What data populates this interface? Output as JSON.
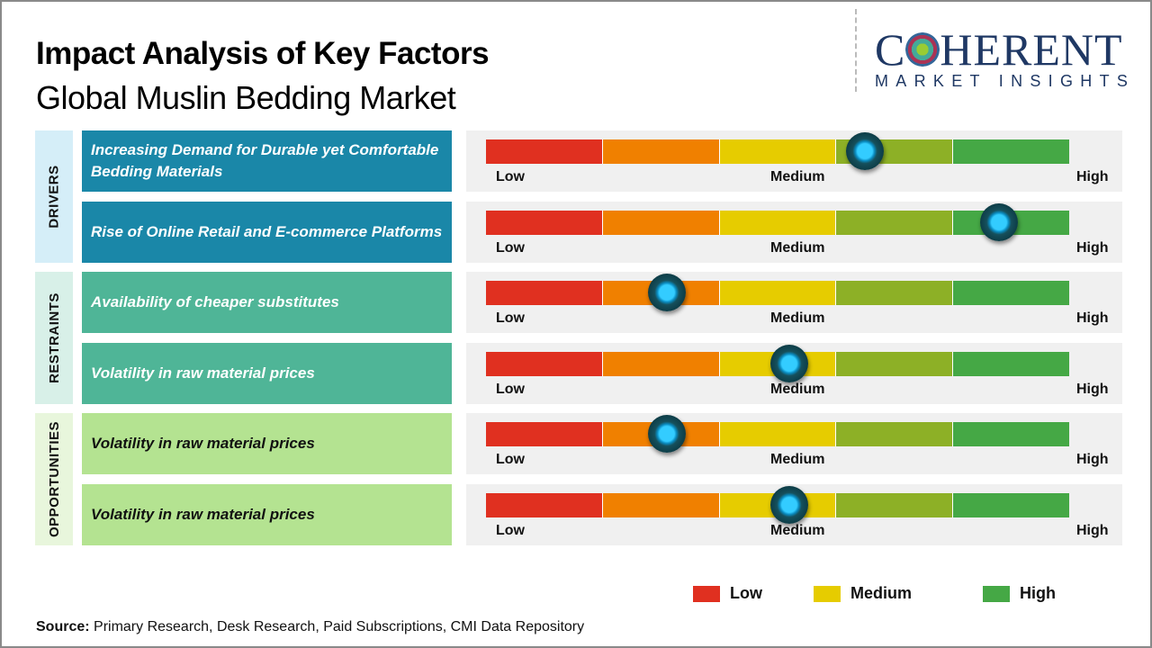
{
  "title": "Impact Analysis of Key Factors",
  "subtitle": "Global Muslin Bedding Market",
  "logo": {
    "line1": "COHERENT",
    "line2": "MARKET INSIGHTS"
  },
  "colors": {
    "low": "#e03020",
    "low_medium": "#f08000",
    "medium": "#e6cc00",
    "medium_high": "#8db026",
    "high": "#45a845",
    "drivers": "#1a87a8",
    "restraints": "#4fb597",
    "opportunities": "#b4e391"
  },
  "scale_labels": {
    "low": "Low",
    "medium": "Medium",
    "high": "High"
  },
  "categories": [
    {
      "name": "DRIVERS",
      "factors": [
        {
          "text": "Increasing Demand for Durable yet Comfortable Bedding Materials",
          "impact_fraction": 0.65
        },
        {
          "text": "Rise of Online Retail and E-commerce Platforms",
          "impact_fraction": 0.88
        }
      ]
    },
    {
      "name": "RESTRAINTS",
      "factors": [
        {
          "text": "Availability of cheaper substitutes",
          "impact_fraction": 0.31
        },
        {
          "text": "Volatility  in raw material  prices",
          "impact_fraction": 0.52
        }
      ]
    },
    {
      "name": "OPPORTUNITIES",
      "factors": [
        {
          "text": "Volatility  in raw material  prices",
          "impact_fraction": 0.31
        },
        {
          "text": "Volatility  in raw material  prices",
          "impact_fraction": 0.52
        }
      ]
    }
  ],
  "legend": [
    {
      "label": "Low",
      "color": "#e03020"
    },
    {
      "label": "Medium",
      "color": "#e6cc00"
    },
    {
      "label": "High",
      "color": "#45a845"
    }
  ],
  "source": {
    "label": "Source:",
    "text": " Primary Research, Desk Research, Paid Subscriptions, CMI Data Repository"
  }
}
